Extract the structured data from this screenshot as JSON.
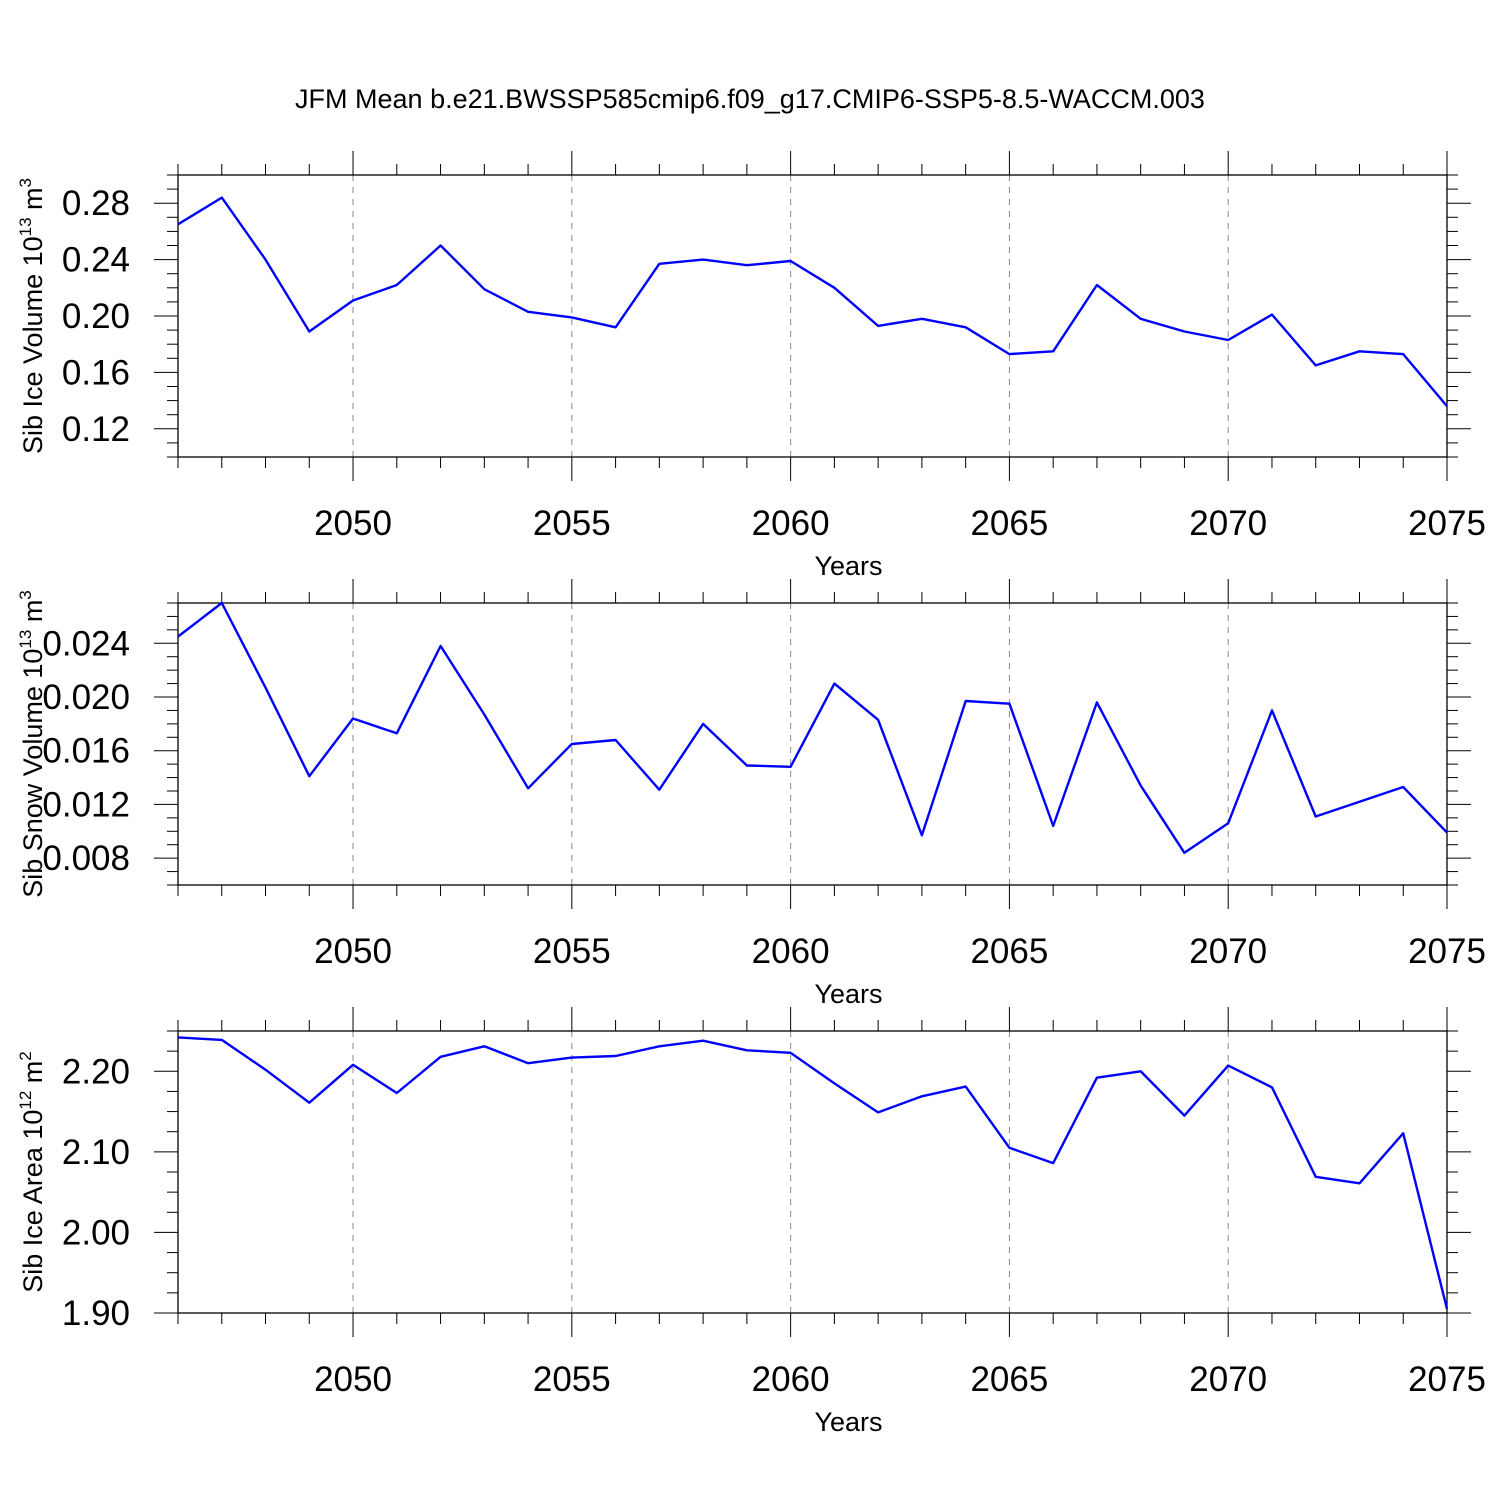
{
  "title": "JFM Mean b.e21.BWSSP585cmip6.f09_g17.CMIP6-SSP5-8.5-WACCM.003",
  "line_color": "#0000ff",
  "chart_data": [
    {
      "type": "line",
      "title": "",
      "xlabel": "Years",
      "ylabel": "Sib Ice Volume 10",
      "ylabel_exp": "13",
      "ylabel_unit": " m",
      "ylabel_unit_exp": "3",
      "xlim": [
        2046,
        2075
      ],
      "ylim": [
        0.1,
        0.3
      ],
      "yticks": [
        0.12,
        0.16,
        0.2,
        0.24,
        0.28
      ],
      "ytick_labels": [
        "0.12",
        "0.16",
        "0.20",
        "0.24",
        "0.28"
      ],
      "xticks": [
        2050,
        2055,
        2060,
        2065,
        2070,
        2075
      ],
      "xtick_labels": [
        "2050",
        "2055",
        "2060",
        "2065",
        "2070",
        "2075"
      ],
      "grid": "vertical dashed at major x ticks",
      "series": [
        {
          "x": [
            2046,
            2047,
            2048,
            2049,
            2050,
            2051,
            2052,
            2053,
            2054,
            2055,
            2056,
            2057,
            2058,
            2059,
            2060,
            2061,
            2062,
            2063,
            2064,
            2065,
            2066,
            2067,
            2068,
            2069,
            2070,
            2071,
            2072,
            2073,
            2074,
            2075
          ],
          "values": [
            0.265,
            0.284,
            0.24,
            0.189,
            0.211,
            0.222,
            0.25,
            0.219,
            0.203,
            0.199,
            0.192,
            0.237,
            0.24,
            0.236,
            0.239,
            0.22,
            0.193,
            0.198,
            0.192,
            0.173,
            0.175,
            0.222,
            0.198,
            0.189,
            0.183,
            0.201,
            0.165,
            0.175,
            0.173,
            0.136
          ]
        }
      ]
    },
    {
      "type": "line",
      "title": "",
      "xlabel": "Years",
      "ylabel": "Sib Snow Volume 10",
      "ylabel_exp": "13",
      "ylabel_unit": " m",
      "ylabel_unit_exp": "3",
      "xlim": [
        2046,
        2075
      ],
      "ylim": [
        0.006,
        0.027
      ],
      "yticks": [
        0.008,
        0.012,
        0.016,
        0.02,
        0.024
      ],
      "ytick_labels": [
        "0.008",
        "0.012",
        "0.016",
        "0.020",
        "0.024"
      ],
      "xticks": [
        2050,
        2055,
        2060,
        2065,
        2070,
        2075
      ],
      "xtick_labels": [
        "2050",
        "2055",
        "2060",
        "2065",
        "2070",
        "2075"
      ],
      "grid": "vertical dashed at major x ticks",
      "series": [
        {
          "x": [
            2046,
            2047,
            2048,
            2049,
            2050,
            2051,
            2052,
            2053,
            2054,
            2055,
            2056,
            2057,
            2058,
            2059,
            2060,
            2061,
            2062,
            2063,
            2064,
            2065,
            2066,
            2067,
            2068,
            2069,
            2070,
            2071,
            2072,
            2073,
            2074,
            2075
          ],
          "values": [
            0.0245,
            0.027,
            0.0207,
            0.0141,
            0.0184,
            0.0173,
            0.0238,
            0.0187,
            0.0132,
            0.0165,
            0.0168,
            0.0131,
            0.018,
            0.0149,
            0.0148,
            0.021,
            0.0183,
            0.0097,
            0.0197,
            0.0195,
            0.0104,
            0.0196,
            0.0134,
            0.0084,
            0.0106,
            0.019,
            0.0111,
            0.0122,
            0.0133,
            0.0099
          ]
        }
      ]
    },
    {
      "type": "line",
      "title": "",
      "xlabel": "Years",
      "ylabel": "Sib Ice Area 10",
      "ylabel_exp": "12",
      "ylabel_unit": " m",
      "ylabel_unit_exp": "2",
      "xlim": [
        2046,
        2075
      ],
      "ylim": [
        1.9,
        2.25
      ],
      "yticks": [
        1.9,
        2.0,
        2.1,
        2.2
      ],
      "ytick_labels": [
        "1.90",
        "2.00",
        "2.10",
        "2.20"
      ],
      "xticks": [
        2050,
        2055,
        2060,
        2065,
        2070,
        2075
      ],
      "xtick_labels": [
        "2050",
        "2055",
        "2060",
        "2065",
        "2070",
        "2075"
      ],
      "grid": "vertical dashed at major x ticks",
      "series": [
        {
          "x": [
            2046,
            2047,
            2048,
            2049,
            2050,
            2051,
            2052,
            2053,
            2054,
            2055,
            2056,
            2057,
            2058,
            2059,
            2060,
            2061,
            2062,
            2063,
            2064,
            2065,
            2066,
            2067,
            2068,
            2069,
            2070,
            2071,
            2072,
            2073,
            2074,
            2075
          ],
          "values": [
            2.242,
            2.239,
            2.202,
            2.161,
            2.208,
            2.173,
            2.218,
            2.231,
            2.21,
            2.217,
            2.219,
            2.231,
            2.238,
            2.226,
            2.223,
            2.185,
            2.149,
            2.169,
            2.181,
            2.105,
            2.086,
            2.192,
            2.2,
            2.145,
            2.207,
            2.18,
            2.069,
            2.061,
            2.123,
            1.905
          ]
        }
      ]
    }
  ]
}
